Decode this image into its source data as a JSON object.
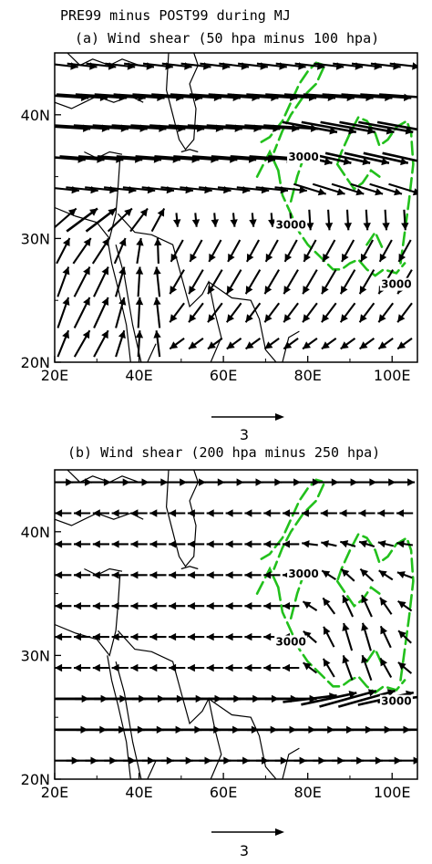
{
  "figure_title": "PRE99 minus POST99 during MJ",
  "colors": {
    "arrow": "#000000",
    "contour": "#22c01c",
    "coast": "#000000"
  },
  "chart_data": [
    {
      "type": "vector-field",
      "title": "(a) Wind shear (50 hpa minus 100 hpa)",
      "x_ticks": [
        "20E",
        "40E",
        "60E",
        "80E",
        "100E"
      ],
      "x_tick_values": [
        20,
        40,
        60,
        80,
        100
      ],
      "y_ticks": [
        "20N",
        "30N",
        "40N"
      ],
      "y_tick_values": [
        20,
        30,
        40
      ],
      "xlim": [
        20,
        106
      ],
      "ylim": [
        20,
        45
      ],
      "reference_vector": {
        "label": "3",
        "magnitude": 3
      },
      "contour_label": "3000",
      "contour_labels": [
        "3000",
        "3000",
        "3000"
      ],
      "vector_regime": "stratosphere"
    },
    {
      "type": "vector-field",
      "title": "(b) Wind shear (200 hpa minus 250 hpa)",
      "x_ticks": [
        "20E",
        "40E",
        "60E",
        "80E",
        "100E"
      ],
      "x_tick_values": [
        20,
        40,
        60,
        80,
        100
      ],
      "y_ticks": [
        "20N",
        "30N",
        "40N"
      ],
      "y_tick_values": [
        20,
        30,
        40
      ],
      "xlim": [
        20,
        106
      ],
      "ylim": [
        20,
        45
      ],
      "reference_vector": {
        "label": "3",
        "magnitude": 3
      },
      "contour_label": "3000",
      "contour_labels": [
        "3000",
        "3000",
        "3000"
      ],
      "vector_regime": "upper-troposphere"
    }
  ]
}
